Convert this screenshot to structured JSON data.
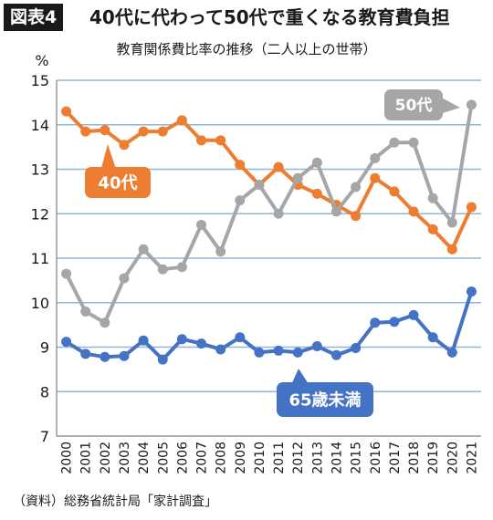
{
  "header": {
    "badge": "図表4",
    "title": "40代に代わって50代で重くなる教育費負担"
  },
  "source": "（資料）総務省統計局「家計調査」",
  "colors": {
    "40s": "#ed7d31",
    "50s": "#a6a6a6",
    "65plus": "#4472c4",
    "grid": "#8fb6d8"
  },
  "chart_data": {
    "type": "line",
    "title": "教育関係費比率の推移（二人以上の世帯）",
    "ylabel": "%",
    "ylim": [
      7,
      15
    ],
    "yticks": [
      "7",
      "8",
      "9",
      "10",
      "11",
      "12",
      "13",
      "14",
      "15"
    ],
    "grid": true,
    "categories": [
      "2000",
      "2001",
      "2002",
      "2003",
      "2004",
      "2005",
      "2006",
      "2007",
      "2008",
      "2009",
      "2010",
      "2011",
      "2012",
      "2013",
      "2014",
      "2015",
      "2016",
      "2017",
      "2018",
      "2019",
      "2020",
      "2021"
    ],
    "series": [
      {
        "key": "s40",
        "name": "40代",
        "color": "#ed7d31",
        "values": [
          14.3,
          13.85,
          13.88,
          13.55,
          13.85,
          13.85,
          14.1,
          13.65,
          13.65,
          13.1,
          12.65,
          13.05,
          12.65,
          12.45,
          12.2,
          11.95,
          12.8,
          12.5,
          12.05,
          11.65,
          11.2,
          12.15
        ]
      },
      {
        "key": "s50",
        "name": "50代",
        "color": "#a6a6a6",
        "values": [
          10.65,
          9.8,
          9.55,
          10.55,
          11.2,
          10.75,
          10.8,
          11.75,
          11.15,
          12.3,
          12.65,
          12.0,
          12.8,
          13.15,
          12.05,
          12.6,
          13.25,
          13.6,
          13.6,
          12.35,
          11.8,
          14.45
        ]
      },
      {
        "key": "s65",
        "name": "65歳未満",
        "color": "#4472c4",
        "values": [
          9.12,
          8.85,
          8.78,
          8.8,
          9.15,
          8.72,
          9.18,
          9.08,
          8.95,
          9.22,
          8.88,
          8.92,
          8.88,
          9.02,
          8.82,
          8.98,
          9.55,
          9.57,
          9.72,
          9.22,
          8.88,
          10.25
        ]
      }
    ]
  }
}
